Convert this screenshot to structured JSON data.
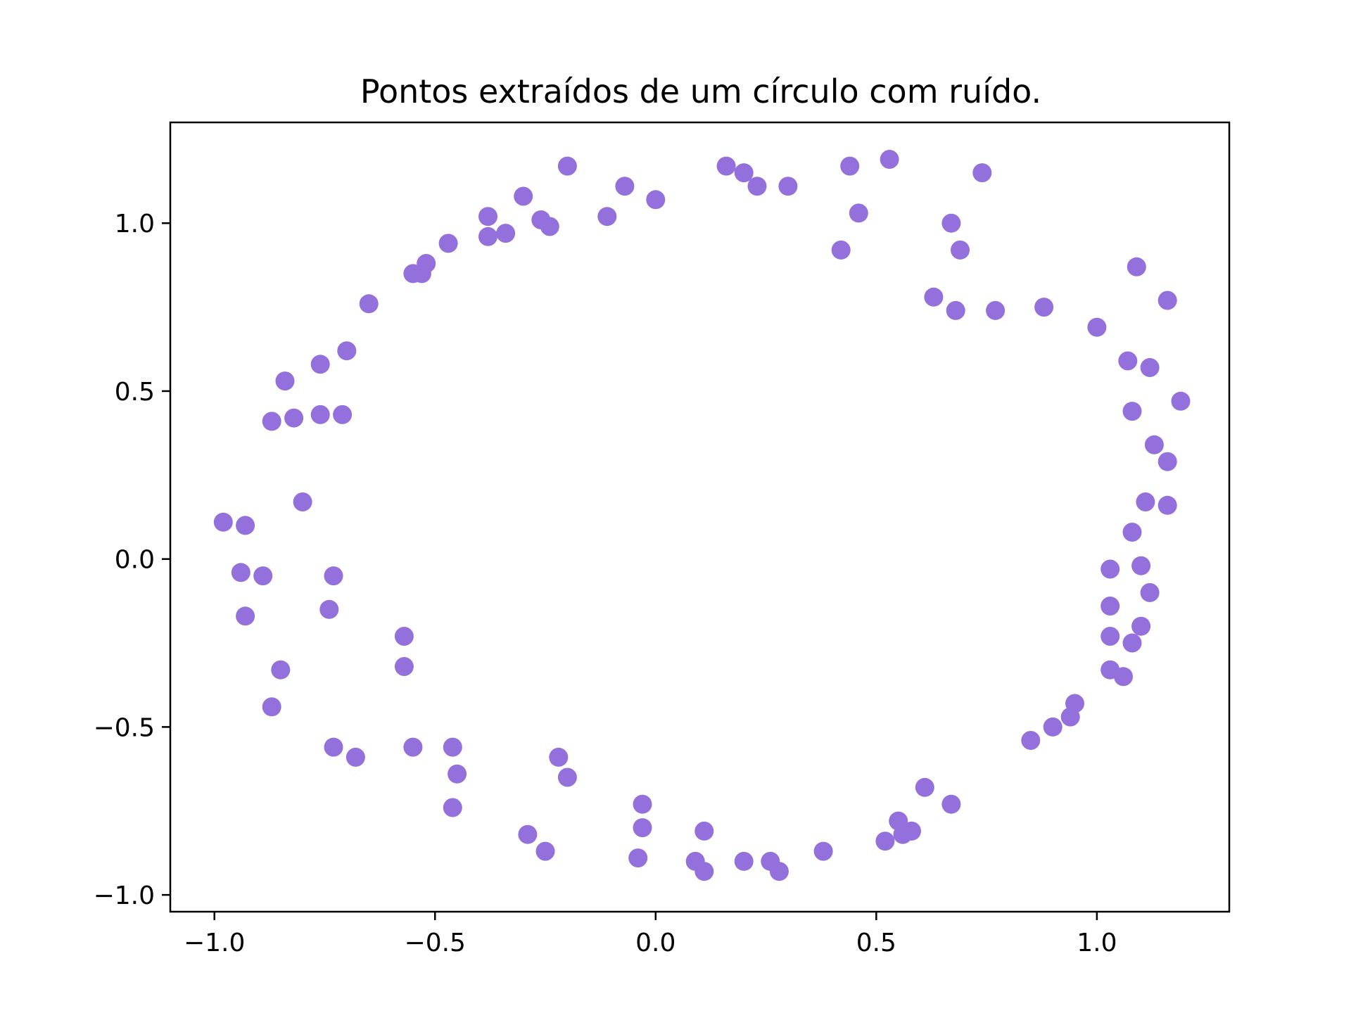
{
  "chart_data": {
    "type": "scatter",
    "title": "Pontos extraídos de um círculo com ruído.",
    "xlabel": "",
    "ylabel": "",
    "xlim": [
      -1.1,
      1.3
    ],
    "ylim": [
      -1.05,
      1.3
    ],
    "xticks": [
      -1.0,
      -0.5,
      0.0,
      0.5,
      1.0
    ],
    "xtick_labels": [
      "−1.0",
      "−0.5",
      "0.0",
      "0.5",
      "1.0"
    ],
    "yticks": [
      -1.0,
      -0.5,
      0.0,
      0.5,
      1.0
    ],
    "ytick_labels": [
      "−1.0",
      "−0.5",
      "0.0",
      "0.5",
      "1.0"
    ],
    "grid": false,
    "marker_color": "#9370db",
    "points": [
      [
        -0.98,
        0.11
      ],
      [
        -0.93,
        0.1
      ],
      [
        -0.94,
        -0.04
      ],
      [
        -0.89,
        -0.05
      ],
      [
        -0.93,
        -0.17
      ],
      [
        -0.85,
        -0.33
      ],
      [
        -0.87,
        -0.44
      ],
      [
        -0.8,
        0.17
      ],
      [
        -0.87,
        0.41
      ],
      [
        -0.82,
        0.42
      ],
      [
        -0.84,
        0.53
      ],
      [
        -0.76,
        0.43
      ],
      [
        -0.71,
        0.43
      ],
      [
        -0.76,
        0.58
      ],
      [
        -0.7,
        0.62
      ],
      [
        -0.73,
        -0.05
      ],
      [
        -0.74,
        -0.15
      ],
      [
        -0.73,
        -0.56
      ],
      [
        -0.68,
        -0.59
      ],
      [
        -0.65,
        0.76
      ],
      [
        -0.57,
        -0.23
      ],
      [
        -0.57,
        -0.32
      ],
      [
        -0.55,
        -0.56
      ],
      [
        -0.46,
        -0.56
      ],
      [
        -0.45,
        -0.64
      ],
      [
        -0.46,
        -0.74
      ],
      [
        -0.55,
        0.85
      ],
      [
        -0.53,
        0.85
      ],
      [
        -0.52,
        0.88
      ],
      [
        -0.47,
        0.94
      ],
      [
        -0.38,
        1.02
      ],
      [
        -0.38,
        0.96
      ],
      [
        -0.34,
        0.97
      ],
      [
        -0.3,
        1.08
      ],
      [
        -0.26,
        1.01
      ],
      [
        -0.24,
        0.99
      ],
      [
        -0.2,
        1.17
      ],
      [
        -0.11,
        1.02
      ],
      [
        -0.07,
        1.11
      ],
      [
        0.0,
        1.07
      ],
      [
        -0.22,
        -0.59
      ],
      [
        -0.2,
        -0.65
      ],
      [
        -0.29,
        -0.82
      ],
      [
        -0.25,
        -0.87
      ],
      [
        -0.03,
        -0.73
      ],
      [
        -0.03,
        -0.8
      ],
      [
        -0.04,
        -0.89
      ],
      [
        0.09,
        -0.9
      ],
      [
        0.11,
        -0.81
      ],
      [
        0.11,
        -0.93
      ],
      [
        0.2,
        -0.9
      ],
      [
        0.26,
        -0.9
      ],
      [
        0.28,
        -0.93
      ],
      [
        0.38,
        -0.87
      ],
      [
        0.16,
        1.17
      ],
      [
        0.2,
        1.15
      ],
      [
        0.23,
        1.11
      ],
      [
        0.3,
        1.11
      ],
      [
        0.44,
        1.17
      ],
      [
        0.46,
        1.03
      ],
      [
        0.42,
        0.92
      ],
      [
        0.53,
        1.19
      ],
      [
        0.52,
        -0.84
      ],
      [
        0.55,
        -0.78
      ],
      [
        0.56,
        -0.82
      ],
      [
        0.58,
        -0.81
      ],
      [
        0.61,
        -0.68
      ],
      [
        0.67,
        -0.73
      ],
      [
        0.63,
        0.78
      ],
      [
        0.67,
        1.0
      ],
      [
        0.69,
        0.92
      ],
      [
        0.68,
        0.74
      ],
      [
        0.74,
        1.15
      ],
      [
        0.77,
        0.74
      ],
      [
        0.88,
        0.75
      ],
      [
        0.85,
        -0.54
      ],
      [
        0.9,
        -0.5
      ],
      [
        0.94,
        -0.47
      ],
      [
        0.95,
        -0.43
      ],
      [
        1.0,
        0.69
      ],
      [
        1.03,
        -0.03
      ],
      [
        1.03,
        -0.14
      ],
      [
        1.03,
        -0.23
      ],
      [
        1.03,
        -0.33
      ],
      [
        1.06,
        -0.35
      ],
      [
        1.07,
        0.59
      ],
      [
        1.08,
        0.44
      ],
      [
        1.08,
        0.08
      ],
      [
        1.08,
        -0.25
      ],
      [
        1.09,
        0.87
      ],
      [
        1.1,
        -0.02
      ],
      [
        1.1,
        -0.2
      ],
      [
        1.11,
        0.17
      ],
      [
        1.12,
        -0.1
      ],
      [
        1.12,
        0.57
      ],
      [
        1.13,
        0.34
      ],
      [
        1.16,
        0.29
      ],
      [
        1.16,
        0.77
      ],
      [
        1.16,
        0.16
      ],
      [
        1.19,
        0.47
      ]
    ]
  }
}
